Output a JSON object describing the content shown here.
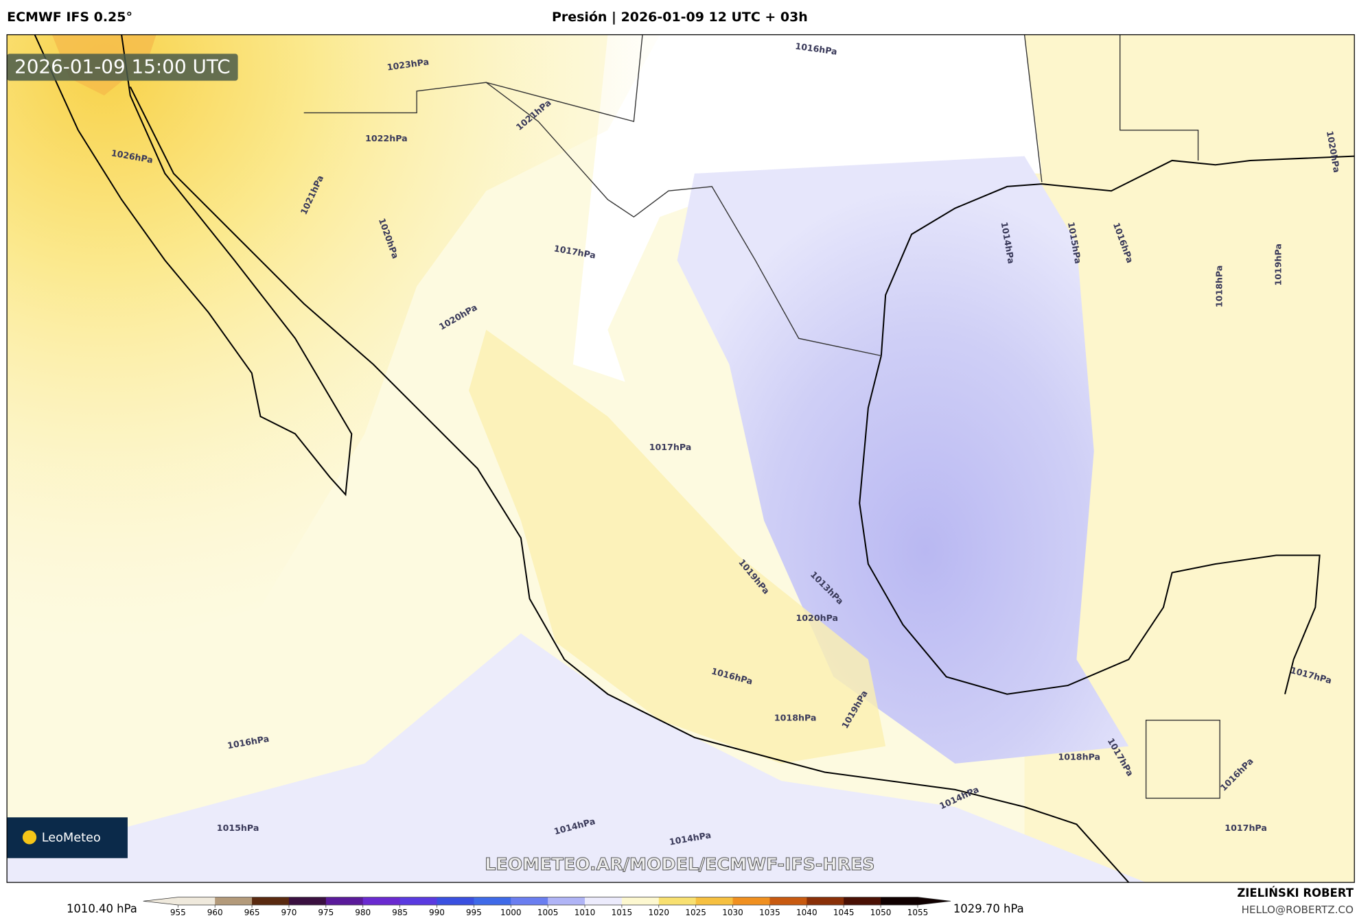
{
  "header": {
    "model": "ECMWF IFS 0.25°",
    "title": "Presión | 2026-01-09 12 UTC + 03h"
  },
  "map": {
    "timestamp": "2026-01-09 15:00 UTC",
    "contour_labels": [
      "1023hPa",
      "1016hPa",
      "1021hPa",
      "1022hPa",
      "1026hPa",
      "1021hPa",
      "1020hPa",
      "1017hPa",
      "1020hPa",
      "1017hPa",
      "1014hPa",
      "1015hPa",
      "1016hPa",
      "1018hPa",
      "1019hPa",
      "1019hPa",
      "1013hPa",
      "1020hPa",
      "1016hPa",
      "1018hPa",
      "1019hPa",
      "1016hPa",
      "1015hPa",
      "1014hPa",
      "1014hPa",
      "1018hPa",
      "1017hPa",
      "1017hPa",
      "1016hPa",
      "1017hPa",
      "1014hPa",
      "1020hPa"
    ],
    "watermark": "LEOMETEO.AR/MODEL/ECMWF-IFS-HRES",
    "logo": "LeoMeteo"
  },
  "colorbar": {
    "min_label": "1010.40 hPa",
    "max_label": "1029.70 hPa",
    "ticks": [
      955,
      960,
      965,
      970,
      975,
      980,
      985,
      990,
      995,
      1000,
      1005,
      1010,
      1015,
      1020,
      1025,
      1030,
      1035,
      1040,
      1045,
      1050,
      1055
    ],
    "segment_colors": [
      "#efe9dc",
      "#b39a7a",
      "#5a2a10",
      "#3a1040",
      "#5a1a9a",
      "#6a2ad0",
      "#5a3ae0",
      "#3a50e0",
      "#3f6ae8",
      "#6a7ef0",
      "#b0b4f6",
      "#ecebfc",
      "#fdf8d0",
      "#f8e070",
      "#f6c040",
      "#f09020",
      "#c85a10",
      "#8a3008",
      "#4a1004",
      "#100000"
    ]
  },
  "credits": {
    "name": "ZIELIŃSKI ROBERT",
    "email": "HELLO@ROBERTZ.CO"
  }
}
